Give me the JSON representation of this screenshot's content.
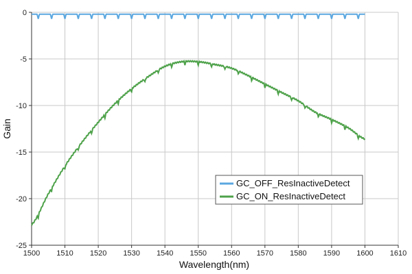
{
  "chart_data": {
    "type": "line",
    "title": "",
    "xlabel": "Wavelength(nm)",
    "ylabel": "Gain",
    "xlim": [
      1500,
      1610
    ],
    "ylim": [
      -25,
      0
    ],
    "xticks": [
      1500,
      1510,
      1520,
      1530,
      1540,
      1550,
      1560,
      1570,
      1580,
      1590,
      1600,
      1610
    ],
    "yticks": [
      0,
      -5,
      -10,
      -15,
      -20,
      -25
    ],
    "grid": true,
    "legend_position": "lower-right",
    "series": [
      {
        "name": "GC_OFF_ResInactiveDetect",
        "color": "#5aa7e0",
        "x": [
          1500,
          1600
        ],
        "y": [
          -0.2,
          -0.2
        ],
        "dip_period_nm": 4,
        "dip_depth": 0.5
      },
      {
        "name": "GC_ON_ResInactiveDetect",
        "color": "#4ea24a",
        "x": [
          1500,
          1505,
          1510,
          1515,
          1520,
          1525,
          1530,
          1535,
          1540,
          1545,
          1550,
          1555,
          1560,
          1565,
          1570,
          1575,
          1580,
          1585,
          1590,
          1595,
          1600
        ],
        "y": [
          -22.8,
          -19.5,
          -16.5,
          -14.0,
          -11.8,
          -9.8,
          -8.2,
          -6.9,
          -5.8,
          -5.3,
          -5.3,
          -5.6,
          -6.0,
          -6.8,
          -7.7,
          -8.6,
          -9.5,
          -10.7,
          -11.5,
          -12.4,
          -13.6
        ]
      }
    ]
  }
}
